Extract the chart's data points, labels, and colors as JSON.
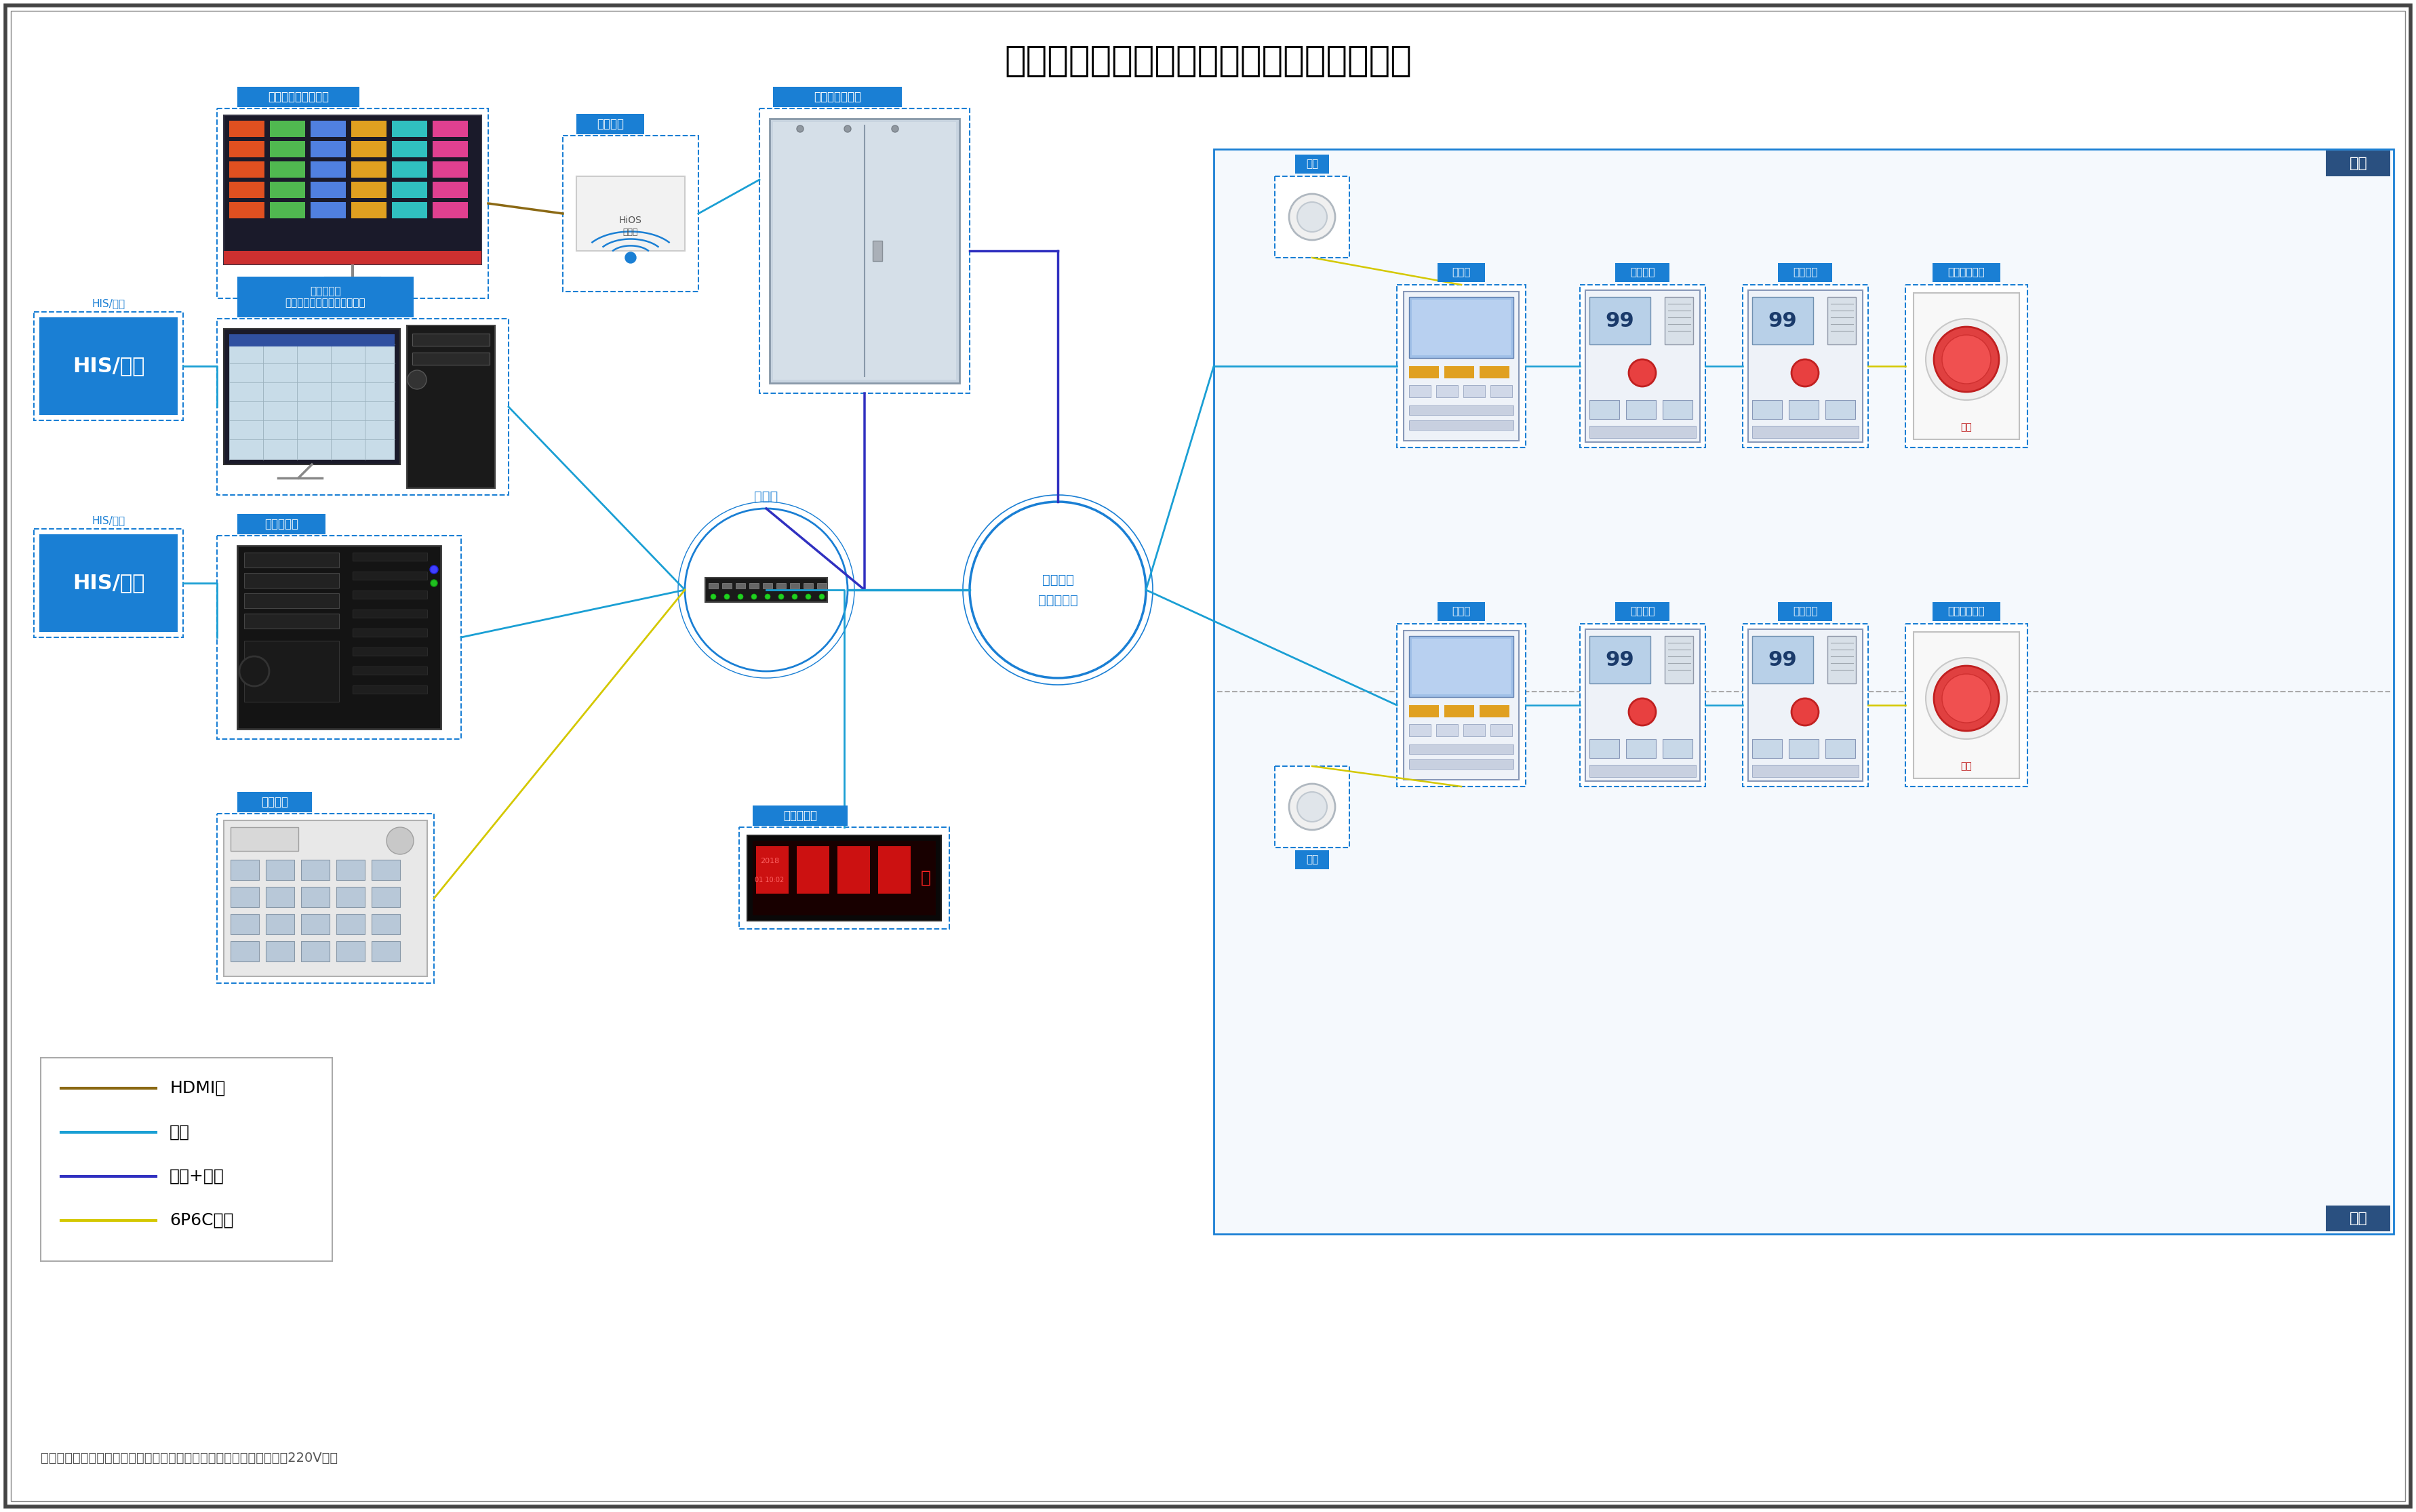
{
  "title": "维鼎康联医护对讲系统尊享系列布线示意图",
  "bg_color": "#ffffff",
  "border_dark": "#555555",
  "main_blue": "#1a7fd4",
  "mid_blue": "#4a9fd4",
  "legend_items": [
    {
      "color": "#8B6914",
      "label": "HDMI线"
    },
    {
      "color": "#1a9fd4",
      "label": "网线"
    },
    {
      "color": "#3030c0",
      "label": "电源+网线"
    },
    {
      "color": "#d4c800",
      "label": "6P6C网线"
    }
  ],
  "note_text": "注：服务器、护士主机、信息看板、走廊显示屏、电源网络交换机均接220V电源"
}
